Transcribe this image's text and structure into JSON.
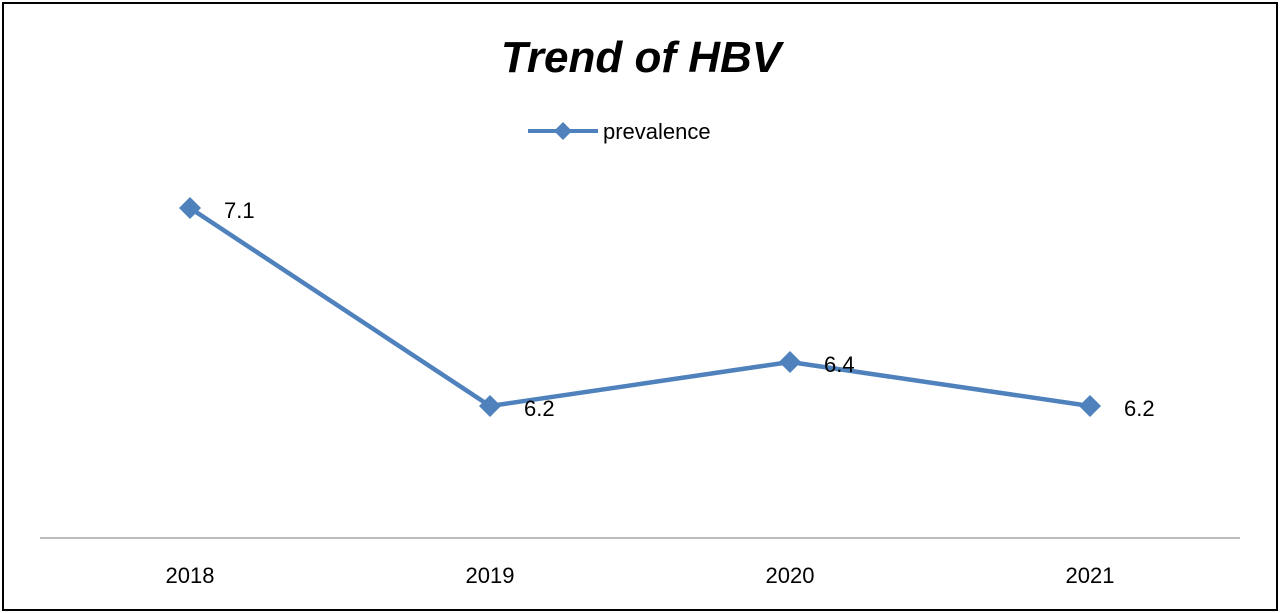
{
  "chart_data": {
    "type": "line",
    "title": "Trend of HBV",
    "categories": [
      "2018",
      "2019",
      "2020",
      "2021"
    ],
    "series": [
      {
        "name": "prevalence",
        "values": [
          7.1,
          6.2,
          6.4,
          6.2
        ],
        "color": "#4F81BD",
        "marker": "diamond"
      }
    ],
    "data_labels": [
      "7.1",
      "6.2",
      "6.4",
      "6.2"
    ],
    "legend_position": "top",
    "grid": false,
    "xlabel": "",
    "ylabel": "",
    "ylim": [
      5.4,
      7.7
    ]
  }
}
